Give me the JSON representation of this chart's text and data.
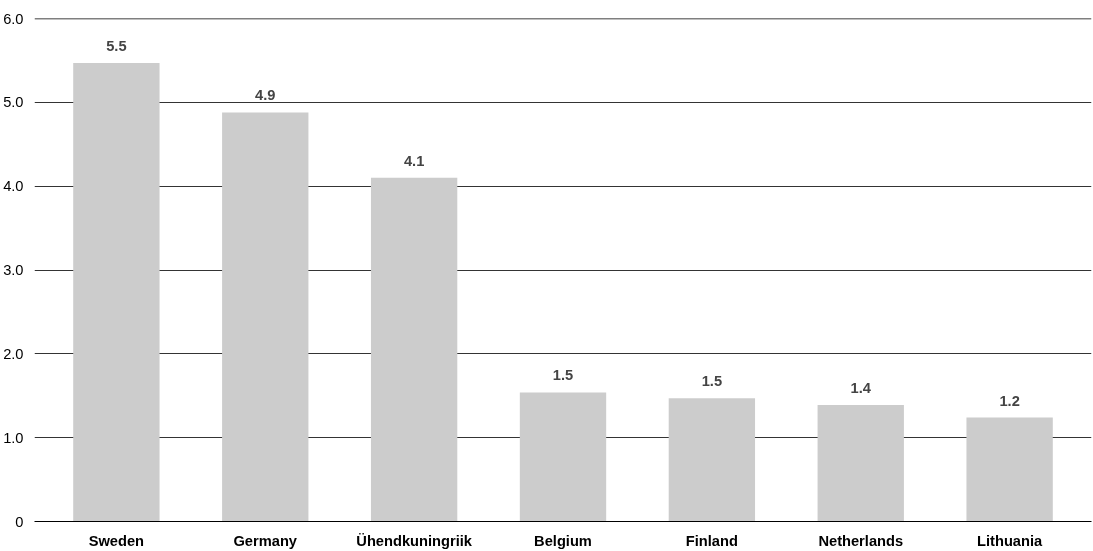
{
  "chart_data": {
    "type": "bar",
    "categories": [
      "Sweden",
      "Germany",
      "Ühendkuningriik",
      "Belgium",
      "Finland",
      "Netherlands",
      "Lithuania"
    ],
    "values": [
      5.47,
      4.88,
      4.1,
      1.54,
      1.47,
      1.39,
      1.24
    ],
    "value_labels": [
      "5.5",
      "4.9",
      "4.1",
      "1.5",
      "1.5",
      "1.4",
      "1.2"
    ],
    "color": "#cccccc",
    "ylim": [
      0,
      6.0
    ],
    "yticks": [
      0,
      {
        "value": 1,
        "label": "1.0"
      },
      {
        "value": 2,
        "label": "2.0"
      },
      {
        "value": 3,
        "label": "3.0"
      },
      {
        "value": 4,
        "label": "4.0"
      },
      {
        "value": 5,
        "label": "5.0"
      },
      {
        "value": 6,
        "label": "6.0"
      }
    ],
    "grid": "y"
  }
}
